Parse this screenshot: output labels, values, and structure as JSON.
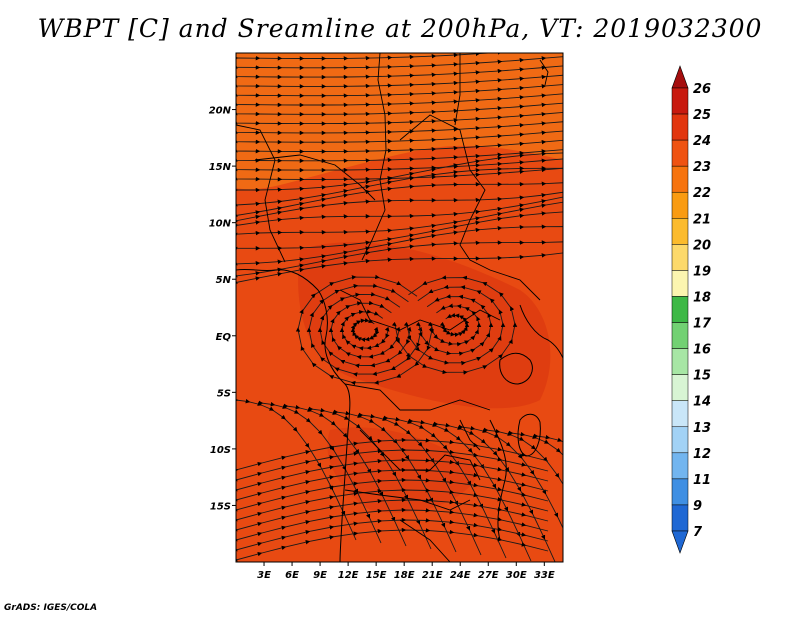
{
  "title": "WBPT [C] and Sreamline at 200hPa, VT: 2019032300",
  "credit": "GrADS: IGES/COLA",
  "map": {
    "lon_range": [
      0,
      35
    ],
    "lat_range": [
      -20,
      25
    ],
    "lon_ticks": [
      "3E",
      "6E",
      "9E",
      "12E",
      "15E",
      "18E",
      "21E",
      "24E",
      "27E",
      "30E",
      "33E"
    ],
    "lat_ticks": [
      "20N",
      "15N",
      "10N",
      "5N",
      "EQ",
      "5S",
      "10S",
      "15S"
    ],
    "field_colors": {
      "north_band": "#f06a14",
      "main": "#e84a12",
      "core": "#dc3a10"
    }
  },
  "colorbar": {
    "levels": [
      "26",
      "25",
      "24",
      "23",
      "22",
      "21",
      "20",
      "19",
      "18",
      "17",
      "16",
      "15",
      "14",
      "13",
      "12",
      "11",
      "9",
      "7"
    ],
    "colors": [
      "#a50e0e",
      "#c81a0f",
      "#e2360f",
      "#ef5312",
      "#f6740f",
      "#f99b12",
      "#fbbb2d",
      "#fcd96b",
      "#fbf5b0",
      "#3db846",
      "#72d173",
      "#a7e6a5",
      "#d8f4d4",
      "#c9e6f8",
      "#a2d2f5",
      "#72b5ef",
      "#3f8fe3",
      "#1f68d4"
    ]
  }
}
